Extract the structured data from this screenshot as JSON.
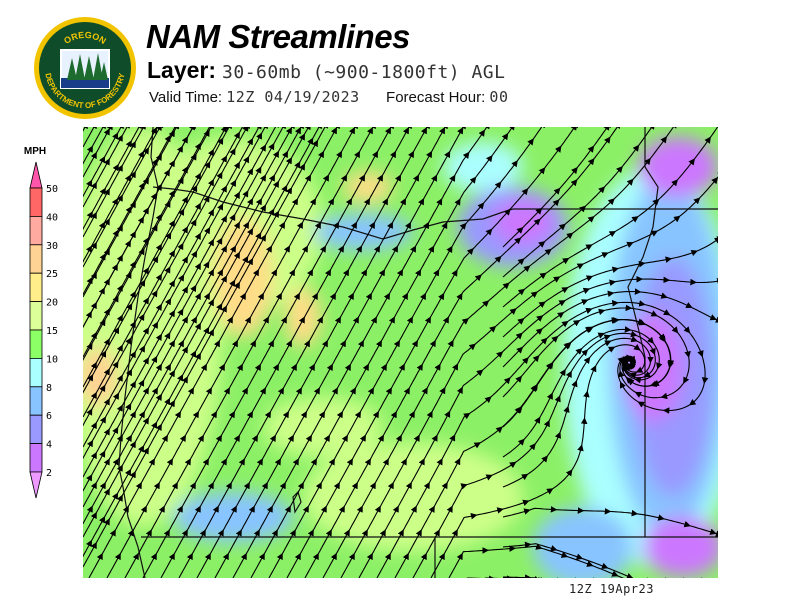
{
  "header": {
    "title": "NAM Streamlines",
    "layer_label": "Layer:",
    "layer_value": "30-60mb (~900-1800ft) AGL",
    "valid_time_label": "Valid Time:",
    "valid_time_value": "12Z 04/19/2023",
    "forecast_hour_label": "Forecast Hour:",
    "forecast_hour_value": "00"
  },
  "logo": {
    "text_top": "OREGON",
    "text_bottom": "DEPARTMENT OF FORESTRY"
  },
  "legend": {
    "unit": "MPH",
    "ticks": [
      "50",
      "40",
      "30",
      "25",
      "20",
      "15",
      "10",
      "8",
      "6",
      "4",
      "2"
    ],
    "colors": [
      "#ff6666",
      "#ffaaa0",
      "#ffd393",
      "#ffee8a",
      "#ddff99",
      "#8cff66",
      "#aaffff",
      "#88c4ff",
      "#9999ff",
      "#cc77ff"
    ],
    "over_color": "#ff55aa",
    "under_color": "#ee99ff"
  },
  "map": {
    "field": "wind speed at 30-60mb AGL with streamlines",
    "region": "Oregon"
  },
  "footer": {
    "timestamp": "12Z 19Apr23"
  }
}
